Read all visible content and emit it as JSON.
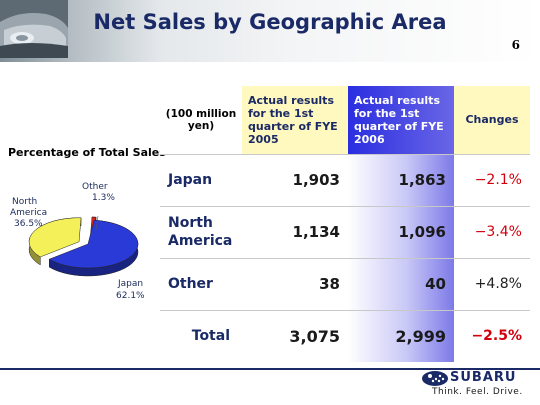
{
  "slide": {
    "title": "Net Sales by Geographic Area",
    "page_number": "6"
  },
  "pie": {
    "title": "Percentage of Total Sales",
    "segments": [
      {
        "name": "Japan",
        "percent_label": "62.1%",
        "value": 62.1,
        "color": "#2a3ad6"
      },
      {
        "name": "North America",
        "name_line1": "North",
        "name_line2": "America",
        "percent_label": "36.5%",
        "value": 36.5,
        "color": "#f4f05a"
      },
      {
        "name": "Other",
        "percent_label": "1.3%",
        "value": 1.3,
        "color": "#d9211b"
      }
    ]
  },
  "table": {
    "unit_label_line1": "(100 million",
    "unit_label_line2": "yen)",
    "col_fye2005": [
      "Actual results",
      "for the 1st",
      "quarter of FYE",
      "2005"
    ],
    "col_fye2006": [
      "Actual results",
      "for the 1st",
      "quarter of FYE",
      "2006"
    ],
    "col_changes": "Changes",
    "rows": [
      {
        "region_line1": "Japan",
        "region_line2": "",
        "fye2005": "1,903",
        "fye2006": "1,863",
        "change": "−2.1%"
      },
      {
        "region_line1": "North",
        "region_line2": "America",
        "fye2005": "1,134",
        "fye2006": "1,096",
        "change": "−3.4%"
      },
      {
        "region_line1": "Other",
        "region_line2": "",
        "fye2005": "38",
        "fye2006": "40",
        "change": "+4.8%"
      },
      {
        "region_line1": "Total",
        "region_line2": "",
        "fye2005": "3,075",
        "fye2006": "2,999",
        "change": "−2.5%"
      }
    ]
  },
  "footer": {
    "brand": "SUBARU",
    "tagline": "Think. Feel. Drive."
  },
  "chart_data": {
    "type": "pie",
    "title": "Percentage of Total Sales",
    "categories": [
      "Japan",
      "North America",
      "Other"
    ],
    "values": [
      62.1,
      36.5,
      1.3
    ]
  }
}
